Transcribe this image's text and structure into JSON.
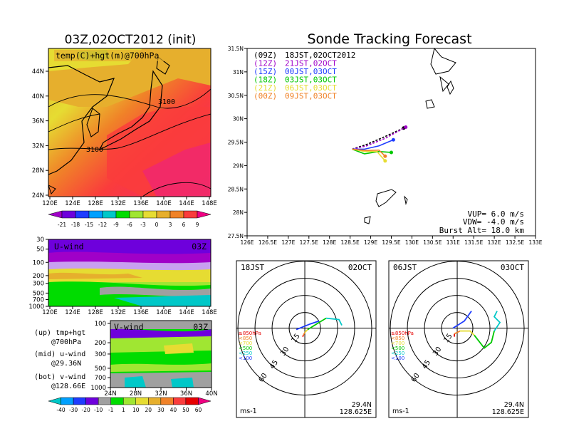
{
  "left_title": "03Z,02OCT2012 (init)",
  "right_title": "Sonde Tracking Forecast",
  "map": {
    "label": "temp(C)+hgt(m)@700hPa",
    "lon_ticks": [
      "120E",
      "124E",
      "128E",
      "132E",
      "136E",
      "140E",
      "144E",
      "148E"
    ],
    "lat_ticks": [
      "24N",
      "28N",
      "32N",
      "36N",
      "40N",
      "44N"
    ],
    "contour_labels": [
      "3100",
      "3100"
    ],
    "colorbar": [
      "-21",
      "-18",
      "-15",
      "-12",
      "-9",
      "-6",
      "-3",
      "0",
      "3",
      "6",
      "9"
    ],
    "colorbar_colors": [
      "#a000c8",
      "#6e00dc",
      "#1e3cff",
      "#00a0ff",
      "#00c8c8",
      "#00dc00",
      "#a0e632",
      "#e6dc32",
      "#e6af2d",
      "#f08228",
      "#fa3c3c",
      "#f00082"
    ]
  },
  "uwind": {
    "label": "U-wind",
    "time": "03Z",
    "p_ticks": [
      "30",
      "50",
      "100",
      "200",
      "300",
      "500",
      "700",
      "1000"
    ],
    "lon_ticks": [
      "120E",
      "124E",
      "128E",
      "132E",
      "136E",
      "140E",
      "144E",
      "148E"
    ]
  },
  "vwind": {
    "label": "V-wind",
    "time": "03Z",
    "p_ticks": [
      "100",
      "200",
      "300",
      "500",
      "700",
      "1000"
    ],
    "lat_ticks": [
      "24N",
      "28N",
      "32N",
      "36N",
      "40N"
    ]
  },
  "wind_colorbar": [
    "-40",
    "-30",
    "-20",
    "-10",
    "-1",
    "1",
    "10",
    "20",
    "30",
    "40",
    "50",
    "60"
  ],
  "legend": [
    {
      "a": "(up) tmp+hgt",
      "b": "@700hPa"
    },
    {
      "a": "(mid) u-wind",
      "b": "@29.36N"
    },
    {
      "a": "(bot) v-wind",
      "b": "@128.66E"
    }
  ],
  "tracking": {
    "lon_ticks": [
      "126E",
      "126.5E",
      "127E",
      "127.5E",
      "128E",
      "128.5E",
      "129E",
      "129.5E",
      "130E",
      "130.5E",
      "131E",
      "131.5E",
      "132E",
      "132.5E",
      "133E"
    ],
    "lat_ticks": [
      "27.5N",
      "28N",
      "28.5N",
      "29N",
      "29.5N",
      "30N",
      "30.5N",
      "31N",
      "31.5N"
    ],
    "runs": [
      {
        "code": "(09Z)",
        "time": "18JST,02OCT2012",
        "color": "#000000"
      },
      {
        "code": "(12Z)",
        "time": "21JST,02OCT",
        "color": "#a000c8"
      },
      {
        "code": "(15Z)",
        "time": "00JST,03OCT",
        "color": "#1e3cff"
      },
      {
        "code": "(18Z)",
        "time": "03JST,03OCT",
        "color": "#00c800"
      },
      {
        "code": "(21Z)",
        "time": "06JST,03OCT",
        "color": "#e6dc32"
      },
      {
        "code": "(00Z)",
        "time": "09JST,03OCT",
        "color": "#f08228"
      }
    ],
    "vup": "VUP= 6.0 m/s",
    "vdw": "VDW= -4.0 m/s",
    "burst": "Burst Alt= 18.0 km"
  },
  "chart_data": {
    "type": "line",
    "title": "Sonde Tracking Forecast",
    "xlabel": "",
    "ylabel": "",
    "xlim": [
      126,
      133
    ],
    "ylim": [
      27.5,
      31.5
    ],
    "series": [
      {
        "name": "(09Z)",
        "points": [
          [
            128.55,
            29.35
          ],
          [
            128.9,
            29.45
          ],
          [
            129.3,
            29.6
          ],
          [
            129.8,
            29.8
          ]
        ],
        "end": [
          129.8,
          29.8
        ]
      },
      {
        "name": "(12Z)",
        "points": [
          [
            128.55,
            29.35
          ],
          [
            128.9,
            29.42
          ],
          [
            129.35,
            29.58
          ],
          [
            129.85,
            29.82
          ]
        ],
        "end": [
          129.85,
          29.82
        ]
      },
      {
        "name": "(15Z)",
        "points": [
          [
            128.55,
            29.35
          ],
          [
            128.85,
            29.35
          ],
          [
            129.2,
            29.42
          ],
          [
            129.55,
            29.55
          ]
        ],
        "end": [
          129.55,
          29.55
        ]
      },
      {
        "name": "(18Z)",
        "points": [
          [
            128.55,
            29.35
          ],
          [
            128.85,
            29.25
          ],
          [
            129.2,
            29.3
          ],
          [
            129.5,
            29.28
          ]
        ],
        "end": [
          129.5,
          29.28
        ]
      },
      {
        "name": "(21Z)",
        "points": [
          [
            128.55,
            29.35
          ],
          [
            128.85,
            29.3
          ],
          [
            129.15,
            29.3
          ],
          [
            129.35,
            29.1
          ]
        ],
        "end": [
          129.35,
          29.1
        ]
      },
      {
        "name": "(00Z)",
        "points": [
          [
            128.55,
            29.35
          ],
          [
            128.9,
            29.32
          ],
          [
            129.2,
            29.33
          ],
          [
            129.35,
            29.2
          ]
        ],
        "end": [
          129.35,
          29.2
        ]
      }
    ]
  },
  "hodo1": {
    "time": "18JST",
    "date": "02OCT",
    "lat": "29.4N",
    "lon": "128.625E",
    "unit": "ms-1",
    "rings": [
      "15",
      "30",
      "45",
      "60"
    ],
    "levels": [
      {
        "t": "≥850hPa",
        "c": "#e60000"
      },
      {
        "t": "<850",
        "c": "#f08228"
      },
      {
        "t": "<700",
        "c": "#e6dc32"
      },
      {
        "t": "<500",
        "c": "#00c800"
      },
      {
        "t": "<250",
        "c": "#00c8c8"
      },
      {
        "t": "<100",
        "c": "#1e3cff"
      }
    ]
  },
  "hodo2": {
    "time": "06JST",
    "date": "03OCT",
    "lat": "29.4N",
    "lon": "128.625E",
    "unit": "ms-1",
    "rings": [
      "15",
      "30",
      "45",
      "60"
    ],
    "levels": [
      {
        "t": "≥850hPa",
        "c": "#e60000"
      },
      {
        "t": "<850",
        "c": "#f08228"
      },
      {
        "t": "<700",
        "c": "#e6dc32"
      },
      {
        "t": "<500",
        "c": "#00c800"
      },
      {
        "t": "<250",
        "c": "#00c8c8"
      },
      {
        "t": "<100",
        "c": "#1e3cff"
      }
    ]
  }
}
